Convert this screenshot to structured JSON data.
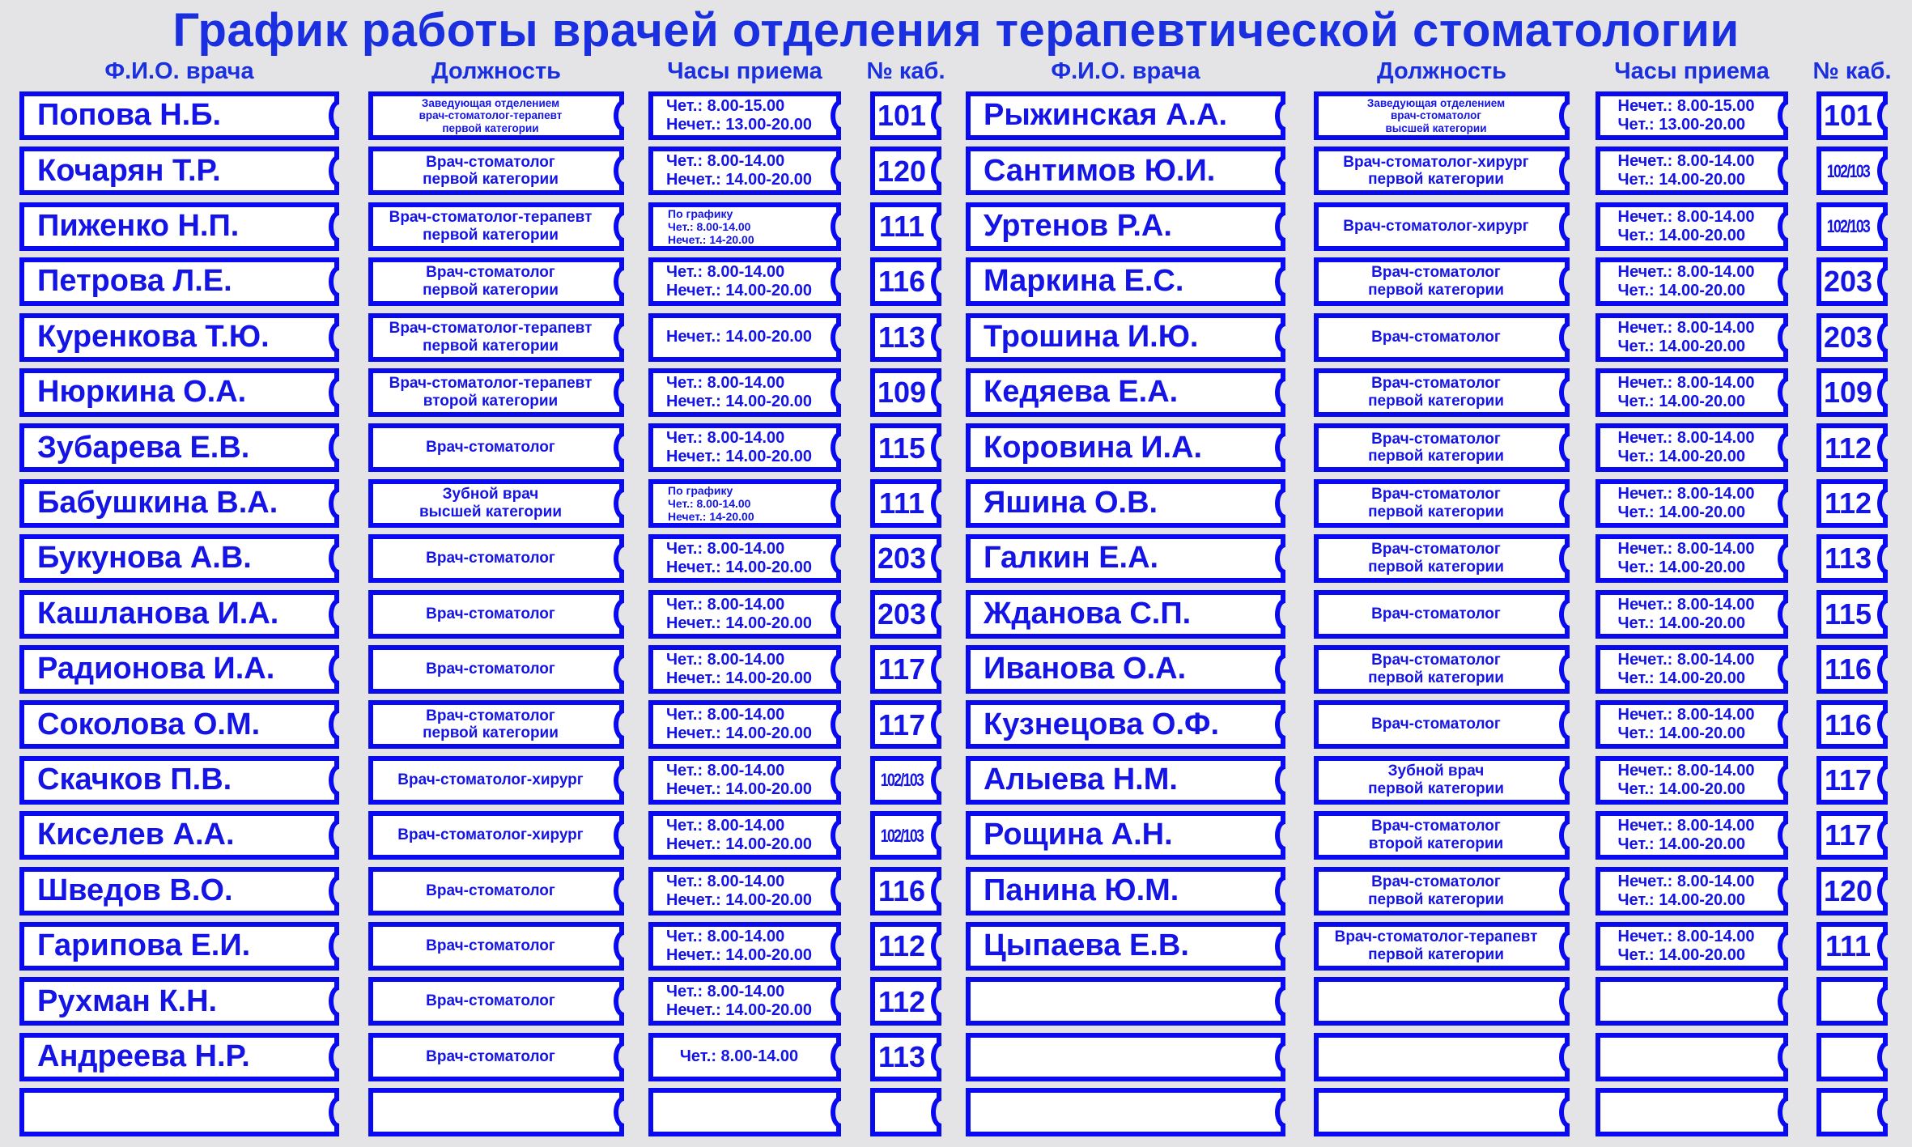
{
  "title": "График работы врачей отделения терапевтической стоматологии",
  "headers": {
    "name": "Ф.И.О. врача",
    "position": "Должность",
    "hours": "Часы приема",
    "room": "№ каб."
  },
  "colors": {
    "accent": "#0a0af0",
    "background": "#e4e4e6"
  },
  "left": [
    {
      "name": "Попова Н.Б.",
      "position": "Заведующая отделением\nврач-стоматолог-терапевт\nпервой категории",
      "hours": "Чет.: 8.00-15.00\nНечет.: 13.00-20.00",
      "room": "101"
    },
    {
      "name": "Кочарян Т.Р.",
      "position": "Врач-стоматолог\nпервой категории",
      "hours": "Чет.: 8.00-14.00\nНечет.: 14.00-20.00",
      "room": "120"
    },
    {
      "name": "Пиженко Н.П.",
      "position": "Врач-стоматолог-терапевт\nпервой категории",
      "hours": "По графику\nЧет.: 8.00-14.00\nНечет.: 14-20.00",
      "room": "111"
    },
    {
      "name": "Петрова Л.Е.",
      "position": "Врач-стоматолог\nпервой категории",
      "hours": "Чет.: 8.00-14.00\nНечет.: 14.00-20.00",
      "room": "116"
    },
    {
      "name": "Куренкова Т.Ю.",
      "position": "Врач-стоматолог-терапевт\nпервой категории",
      "hours": "Нечет.: 14.00-20.00",
      "room": "113"
    },
    {
      "name": "Нюркина О.А.",
      "position": "Врач-стоматолог-терапевт\nвторой категории",
      "hours": "Чет.: 8.00-14.00\nНечет.: 14.00-20.00",
      "room": "109"
    },
    {
      "name": "Зубарева Е.В.",
      "position": "Врач-стоматолог",
      "hours": "Чет.: 8.00-14.00\nНечет.: 14.00-20.00",
      "room": "115"
    },
    {
      "name": "Бабушкина В.А.",
      "position": "Зубной врач\nвысшей категории",
      "hours": "По графику\nЧет.: 8.00-14.00\nНечет.: 14-20.00",
      "room": "111"
    },
    {
      "name": "Букунова А.В.",
      "position": "Врач-стоматолог",
      "hours": "Чет.: 8.00-14.00\nНечет.: 14.00-20.00",
      "room": "203"
    },
    {
      "name": "Кашланова И.А.",
      "position": "Врач-стоматолог",
      "hours": "Чет.: 8.00-14.00\nНечет.: 14.00-20.00",
      "room": "203"
    },
    {
      "name": "Радионова И.А.",
      "position": "Врач-стоматолог",
      "hours": "Чет.: 8.00-14.00\nНечет.: 14.00-20.00",
      "room": "117"
    },
    {
      "name": "Соколова О.М.",
      "position": "Врач-стоматолог\nпервой категории",
      "hours": "Чет.: 8.00-14.00\nНечет.: 14.00-20.00",
      "room": "117"
    },
    {
      "name": "Скачков П.В.",
      "position": "Врач-стоматолог-хирург",
      "hours": "Чет.: 8.00-14.00\nНечет.: 14.00-20.00",
      "room": "102/103"
    },
    {
      "name": "Киселев А.А.",
      "position": "Врач-стоматолог-хирург",
      "hours": "Чет.: 8.00-14.00\nНечет.: 14.00-20.00",
      "room": "102/103"
    },
    {
      "name": "Шведов В.О.",
      "position": "Врач-стоматолог",
      "hours": "Чет.: 8.00-14.00\nНечет.: 14.00-20.00",
      "room": "116"
    },
    {
      "name": "Гарипова Е.И.",
      "position": "Врач-стоматолог",
      "hours": "Чет.: 8.00-14.00\nНечет.: 14.00-20.00",
      "room": "112"
    },
    {
      "name": "Рухман К.Н.",
      "position": "Врач-стоматолог",
      "hours": "Чет.: 8.00-14.00\nНечет.: 14.00-20.00",
      "room": "112"
    },
    {
      "name": "Андреева Н.Р.",
      "position": "Врач-стоматолог",
      "hours": "Чет.: 8.00-14.00",
      "room": "113"
    },
    {
      "name": "",
      "position": "",
      "hours": "",
      "room": ""
    }
  ],
  "right": [
    {
      "name": "Рыжинская А.А.",
      "position": "Заведующая отделением\nврач-стоматолог\nвысшей категории",
      "hours": "Нечет.: 8.00-15.00\nЧет.: 13.00-20.00",
      "room": "101"
    },
    {
      "name": "Сантимов Ю.И.",
      "position": "Врач-стоматолог-хирург\nпервой категории",
      "hours": "Нечет.: 8.00-14.00\nЧет.: 14.00-20.00",
      "room": "102/103"
    },
    {
      "name": "Уртенов Р.А.",
      "position": "Врач-стоматолог-хирург",
      "hours": "Нечет.: 8.00-14.00\nЧет.: 14.00-20.00",
      "room": "102/103"
    },
    {
      "name": "Маркина Е.С.",
      "position": "Врач-стоматолог\nпервой категории",
      "hours": "Нечет.: 8.00-14.00\nЧет.: 14.00-20.00",
      "room": "203"
    },
    {
      "name": "Трошина И.Ю.",
      "position": "Врач-стоматолог",
      "hours": "Нечет.: 8.00-14.00\nЧет.: 14.00-20.00",
      "room": "203"
    },
    {
      "name": "Кедяева Е.А.",
      "position": "Врач-стоматолог\nпервой категории",
      "hours": "Нечет.: 8.00-14.00\nЧет.: 14.00-20.00",
      "room": "109"
    },
    {
      "name": "Коровина И.А.",
      "position": "Врач-стоматолог\nпервой категории",
      "hours": "Нечет.: 8.00-14.00\nЧет.: 14.00-20.00",
      "room": "112"
    },
    {
      "name": "Яшина О.В.",
      "position": "Врач-стоматолог\nпервой категории",
      "hours": "Нечет.: 8.00-14.00\nЧет.: 14.00-20.00",
      "room": "112"
    },
    {
      "name": "Галкин Е.А.",
      "position": "Врач-стоматолог\nпервой категории",
      "hours": "Нечет.: 8.00-14.00\nЧет.: 14.00-20.00",
      "room": "113"
    },
    {
      "name": "Жданова С.П.",
      "position": "Врач-стоматолог",
      "hours": "Нечет.: 8.00-14.00\nЧет.: 14.00-20.00",
      "room": "115"
    },
    {
      "name": "Иванова О.А.",
      "position": "Врач-стоматолог\nпервой категории",
      "hours": "Нечет.: 8.00-14.00\nЧет.: 14.00-20.00",
      "room": "116"
    },
    {
      "name": "Кузнецова О.Ф.",
      "position": "Врач-стоматолог",
      "hours": "Нечет.: 8.00-14.00\nЧет.: 14.00-20.00",
      "room": "116"
    },
    {
      "name": "Алыева Н.М.",
      "position": "Зубной врач\nпервой категории",
      "hours": "Нечет.: 8.00-14.00\nЧет.: 14.00-20.00",
      "room": "117"
    },
    {
      "name": "Рощина А.Н.",
      "position": "Врач-стоматолог\nвторой категории",
      "hours": "Нечет.: 8.00-14.00\nЧет.: 14.00-20.00",
      "room": "117"
    },
    {
      "name": "Панина Ю.М.",
      "position": "Врач-стоматолог\nпервой категории",
      "hours": "Нечет.: 8.00-14.00\nЧет.: 14.00-20.00",
      "room": "120"
    },
    {
      "name": "Цыпаева Е.В.",
      "position": "Врач-стоматолог-терапевт\nпервой категории",
      "hours": "Нечет.: 8.00-14.00\nЧет.: 14.00-20.00",
      "room": "111"
    },
    {
      "name": "",
      "position": "",
      "hours": "",
      "room": ""
    },
    {
      "name": "",
      "position": "",
      "hours": "",
      "room": ""
    },
    {
      "name": "",
      "position": "",
      "hours": "",
      "room": ""
    }
  ]
}
